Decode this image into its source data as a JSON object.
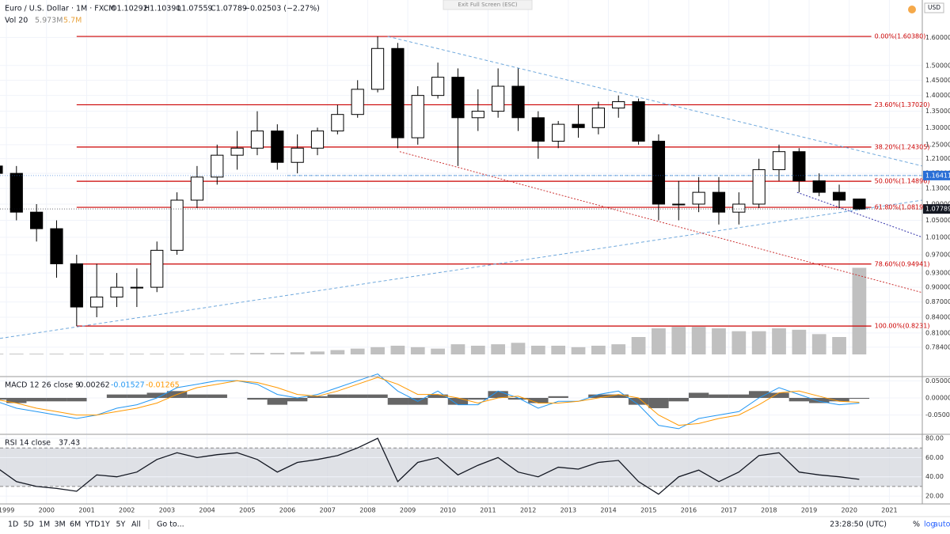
{
  "ui": {
    "exit_button": "Exit Full Screen (ESC)",
    "currency": "USD",
    "timeframes": [
      "1D",
      "5D",
      "1M",
      "3M",
      "6M",
      "YTD",
      "1Y",
      "5Y",
      "All"
    ],
    "goto": "Go to...",
    "clock": "23:28:50 (UTC)",
    "scale_options": [
      "%",
      "log",
      "auto"
    ]
  },
  "chart_data": [
    {
      "type": "candlestick",
      "title": "Euro / U.S. Dollar · 1M · FXCM",
      "ohlc_labels": [
        "O1.10292",
        "H1.10390",
        "L1.07559",
        "C1.07789"
      ],
      "change_label": "−0.02503 (−2.27%)",
      "x": [
        1998.75,
        1999.25,
        1999.75,
        2000.25,
        2000.75,
        2001.25,
        2001.75,
        2002.25,
        2002.75,
        2003.25,
        2003.75,
        2004.25,
        2004.75,
        2005.25,
        2005.75,
        2006.25,
        2006.75,
        2007.25,
        2007.75,
        2008.25,
        2008.75,
        2009.25,
        2009.75,
        2010.25,
        2010.75,
        2011.25,
        2011.75,
        2012.25,
        2012.75,
        2013.25,
        2013.75,
        2014.25,
        2014.75,
        2015.25,
        2015.75,
        2016.25,
        2016.75,
        2017.25,
        2017.75,
        2018.25,
        2018.75,
        2019.25,
        2019.75,
        2020.25
      ],
      "open": [
        1.19,
        1.17,
        1.07,
        1.03,
        0.95,
        0.86,
        0.88,
        0.9,
        0.9,
        0.98,
        1.1,
        1.16,
        1.22,
        1.24,
        1.29,
        1.2,
        1.24,
        1.29,
        1.34,
        1.42,
        1.56,
        1.27,
        1.4,
        1.46,
        1.33,
        1.35,
        1.43,
        1.33,
        1.26,
        1.31,
        1.3,
        1.36,
        1.38,
        1.26,
        1.09,
        1.09,
        1.12,
        1.07,
        1.09,
        1.18,
        1.23,
        1.15,
        1.12,
        1.10292
      ],
      "high": [
        1.21,
        1.19,
        1.09,
        1.05,
        0.97,
        0.95,
        0.93,
        0.94,
        1.0,
        1.12,
        1.19,
        1.25,
        1.29,
        1.35,
        1.31,
        1.28,
        1.3,
        1.37,
        1.45,
        1.6038,
        1.58,
        1.43,
        1.51,
        1.49,
        1.42,
        1.49,
        1.49,
        1.35,
        1.32,
        1.37,
        1.38,
        1.4,
        1.39,
        1.28,
        1.15,
        1.16,
        1.16,
        1.12,
        1.21,
        1.25,
        1.24,
        1.17,
        1.14,
        1.1039
      ],
      "low": [
        1.15,
        1.05,
        1.0,
        0.92,
        0.8231,
        0.84,
        0.86,
        0.86,
        0.89,
        0.97,
        1.08,
        1.14,
        1.18,
        1.22,
        1.18,
        1.17,
        1.22,
        1.28,
        1.33,
        1.41,
        1.24,
        1.25,
        1.39,
        1.19,
        1.29,
        1.33,
        1.29,
        1.21,
        1.24,
        1.27,
        1.28,
        1.33,
        1.25,
        1.05,
        1.05,
        1.07,
        1.04,
        1.04,
        1.08,
        1.15,
        1.12,
        1.11,
        1.08,
        1.07559
      ],
      "close": [
        1.17,
        1.07,
        1.03,
        0.95,
        0.86,
        0.88,
        0.9,
        0.9,
        0.98,
        1.1,
        1.16,
        1.22,
        1.24,
        1.29,
        1.2,
        1.24,
        1.29,
        1.34,
        1.42,
        1.56,
        1.27,
        1.4,
        1.46,
        1.33,
        1.35,
        1.43,
        1.33,
        1.26,
        1.31,
        1.3,
        1.36,
        1.38,
        1.26,
        1.09,
        1.09,
        1.12,
        1.07,
        1.09,
        1.18,
        1.23,
        1.15,
        1.12,
        1.1,
        1.07789
      ],
      "up_color": "#ffffff",
      "down_color": "#000000",
      "xlim": [
        1998.84,
        2021.82
      ],
      "xticks": [
        1999,
        2000,
        2001,
        2002,
        2003,
        2004,
        2005,
        2006,
        2007,
        2008,
        2009,
        2010,
        2011,
        2012,
        2013,
        2014,
        2015,
        2016,
        2017,
        2018,
        2019,
        2020,
        2021
      ],
      "log_scale": true,
      "ylim": [
        0.734,
        1.719
      ],
      "yticks": [
        {
          "value": 1.6,
          "label": "1.60000"
        },
        {
          "value": 1.5,
          "label": "1.50000"
        },
        {
          "value": 1.45,
          "label": "1.45000"
        },
        {
          "value": 1.4,
          "label": "1.40000"
        },
        {
          "value": 1.35,
          "label": "1.35000"
        },
        {
          "value": 1.3,
          "label": "1.30000"
        },
        {
          "value": 1.25,
          "label": "1.25000"
        },
        {
          "value": 1.21,
          "label": "1.21000"
        },
        {
          "value": 1.17,
          "label": "1.17000"
        },
        {
          "value": 1.13,
          "label": "1.13000"
        },
        {
          "value": 1.09,
          "label": "1.09000"
        },
        {
          "value": 1.05,
          "label": "1.05000"
        },
        {
          "value": 1.01,
          "label": "1.01000"
        },
        {
          "value": 0.97,
          "label": "0.97000"
        },
        {
          "value": 0.93,
          "label": "0.93000"
        },
        {
          "value": 0.9,
          "label": "0.90000"
        },
        {
          "value": 0.87,
          "label": "0.87000"
        },
        {
          "value": 0.84,
          "label": "0.84000"
        },
        {
          "value": 0.81,
          "label": "0.81000"
        },
        {
          "value": 0.784,
          "label": "0.78400"
        }
      ],
      "volume": {
        "label": "Vol 20",
        "value_label": "5.973M",
        "ma_label": "5.7M",
        "color": "#c0c0c0",
        "vlim": [
          0,
          24
        ],
        "values": [
          0.05,
          0.05,
          0.05,
          0.05,
          0.05,
          0.05,
          0.05,
          0.05,
          0.05,
          0.05,
          0.05,
          0.05,
          0.08,
          0.1,
          0.1,
          0.15,
          0.2,
          0.3,
          0.4,
          0.5,
          0.6,
          0.5,
          0.4,
          0.7,
          0.6,
          0.7,
          0.8,
          0.6,
          0.6,
          0.5,
          0.6,
          0.7,
          1.2,
          1.8,
          1.9,
          1.9,
          1.8,
          1.6,
          1.6,
          1.8,
          1.7,
          1.4,
          1.2,
          5.973
        ]
      },
      "fib_color": "#cc0000",
      "fib_range": [
        2000.75,
        2020.55
      ],
      "fib_levels": [
        {
          "label": "0.00%(1.60380)",
          "value": 1.6038
        },
        {
          "label": "23.60%(1.37020)",
          "value": 1.3702
        },
        {
          "label": "38.20%(1.24305)",
          "value": 1.24305
        },
        {
          "label": "50.00%(1.14896)",
          "value": 1.14896
        },
        {
          "label": "61.80%(1.08199)",
          "value": 1.08199
        },
        {
          "label": "78.60%(0.94941)",
          "value": 0.94941
        },
        {
          "label": "100.00%(0.8231)",
          "value": 0.8231
        }
      ],
      "drawings": [
        {
          "color": "#6fa8dc",
          "dash": "4 3",
          "points": [
            [
              1998.84,
              0.8
            ],
            [
              2021.82,
              1.1
            ]
          ]
        },
        {
          "color": "#6fa8dc",
          "dash": "4 3",
          "points": [
            [
              2008.5,
              1.6038
            ],
            [
              2021.82,
              1.19
            ]
          ]
        },
        {
          "color": "#cc3333",
          "dash": "2 2",
          "points": [
            [
              2008.8,
              1.23
            ],
            [
              2021.82,
              0.889
            ]
          ]
        },
        {
          "color": "#6fa8dc",
          "dash": "4 3",
          "points": [
            [
              2006.0,
              1.16411
            ],
            [
              2021.82,
              1.16411
            ]
          ]
        },
        {
          "color": "#3333aa",
          "dash": "2 2",
          "points": [
            [
              2018.7,
              1.12
            ],
            [
              2021.82,
              1.01
            ]
          ]
        }
      ],
      "price_badges": {
        "values": [
          1.16411,
          1.07789
        ],
        "colors": [
          "#2a6fd6",
          "#131722"
        ]
      }
    },
    {
      "type": "macd",
      "title": "MACD 12 26 close 9",
      "header_values": [
        "-0.00262",
        "-0.01527",
        "-0.01265"
      ],
      "header_colors": [
        "#131722",
        "#2196f3",
        "#ff9800"
      ],
      "macd": [
        -0.01,
        -0.03,
        -0.04,
        -0.05,
        -0.06,
        -0.05,
        -0.03,
        -0.02,
        0.0,
        0.03,
        0.04,
        0.05,
        0.05,
        0.04,
        0.01,
        0.0,
        0.01,
        0.03,
        0.05,
        0.07,
        0.02,
        -0.01,
        0.02,
        -0.02,
        -0.02,
        0.02,
        0.0,
        -0.03,
        -0.01,
        -0.01,
        0.01,
        0.02,
        -0.02,
        -0.08,
        -0.09,
        -0.06,
        -0.05,
        -0.04,
        0.0,
        0.03,
        0.01,
        -0.01,
        -0.02,
        -0.01527
      ],
      "signal": [
        -0.005,
        -0.015,
        -0.03,
        -0.04,
        -0.05,
        -0.05,
        -0.04,
        -0.03,
        -0.015,
        0.01,
        0.03,
        0.04,
        0.05,
        0.045,
        0.03,
        0.01,
        0.005,
        0.02,
        0.04,
        0.06,
        0.04,
        0.01,
        0.01,
        0.0,
        -0.015,
        0.0,
        0.005,
        -0.015,
        -0.015,
        -0.01,
        0.0,
        0.01,
        0.0,
        -0.05,
        -0.08,
        -0.075,
        -0.06,
        -0.05,
        -0.02,
        0.015,
        0.02,
        0.005,
        -0.01,
        -0.01265
      ],
      "histogram": [
        -0.005,
        -0.015,
        -0.01,
        -0.01,
        -0.01,
        0.0,
        0.01,
        0.01,
        0.015,
        0.02,
        0.01,
        0.01,
        0.0,
        -0.005,
        -0.02,
        -0.01,
        0.005,
        0.01,
        0.01,
        0.01,
        -0.02,
        -0.02,
        0.01,
        -0.02,
        -0.005,
        0.02,
        -0.005,
        -0.015,
        0.005,
        0.0,
        0.01,
        0.01,
        -0.02,
        -0.03,
        -0.01,
        0.015,
        0.01,
        0.01,
        0.02,
        0.015,
        -0.01,
        -0.015,
        -0.01,
        -0.00262
      ],
      "macd_color": "#2196f3",
      "signal_color": "#ff9800",
      "histogram_color": "#333333",
      "ylim": [
        -0.104,
        0.06
      ],
      "yticks": [
        {
          "value": 0.05,
          "label": "0.05000"
        },
        {
          "value": 0,
          "label": "0.00000"
        },
        {
          "value": -0.05,
          "label": "-0.05000"
        }
      ]
    },
    {
      "type": "rsi",
      "title": "RSI 14 close",
      "value_label": "37.43",
      "color": "#131722",
      "band": [
        30,
        70
      ],
      "values": [
        50,
        35,
        30,
        28,
        25,
        42,
        40,
        45,
        58,
        65,
        60,
        63,
        65,
        58,
        45,
        55,
        58,
        62,
        70,
        80,
        35,
        55,
        60,
        42,
        52,
        60,
        45,
        40,
        50,
        48,
        55,
        57,
        35,
        22,
        40,
        47,
        35,
        45,
        62,
        65,
        45,
        42,
        40,
        37.43
      ],
      "ylim": [
        12.7,
        83.3
      ],
      "yticks": [
        {
          "value": 80,
          "label": "80.00"
        },
        {
          "value": 60,
          "label": "60.00"
        },
        {
          "value": 40,
          "label": "40.00"
        },
        {
          "value": 20,
          "label": "20.00"
        }
      ]
    }
  ]
}
